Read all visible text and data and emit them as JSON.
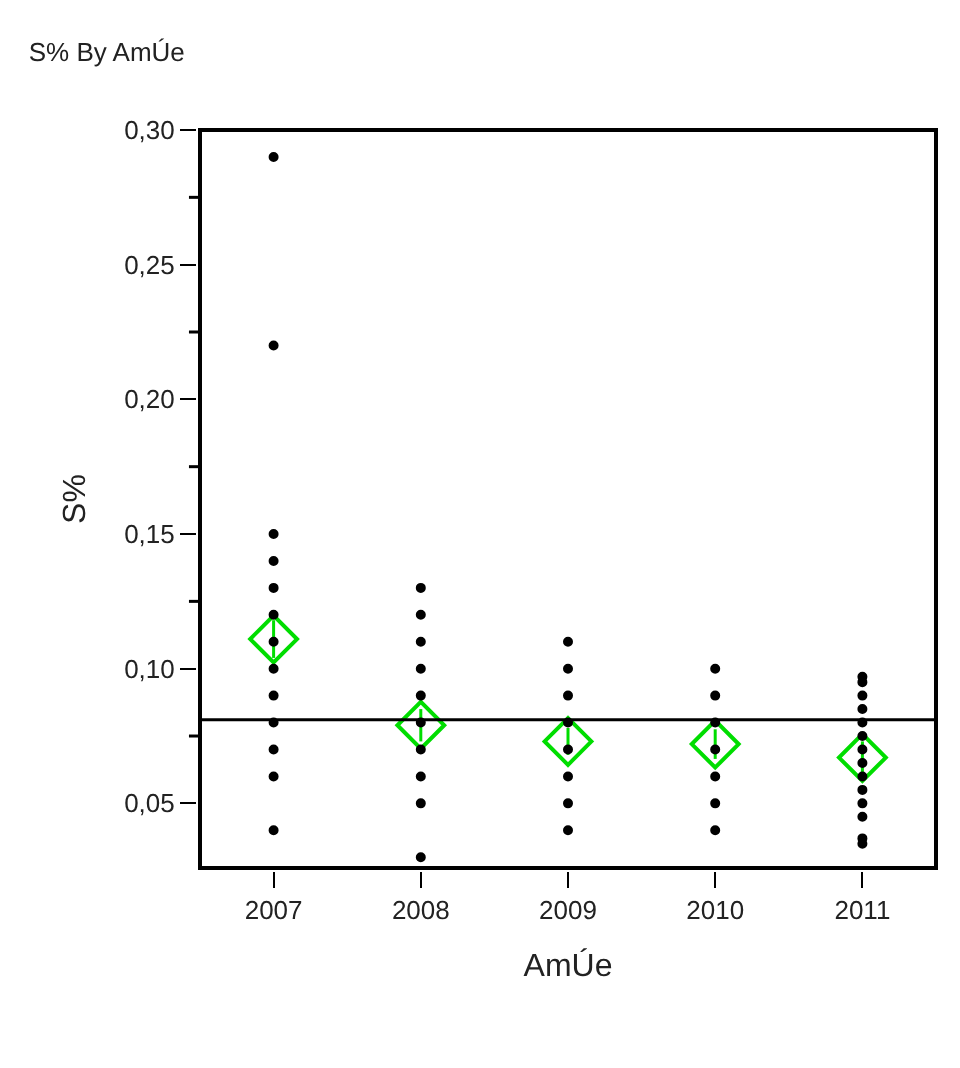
{
  "chart_data": {
    "type": "scatter",
    "title": "S% By AmÚe",
    "xlabel": "AmÚe",
    "ylabel": "S%",
    "series": [
      {
        "color": "#000000",
        "marker": "circle",
        "x": [
          2007,
          2007,
          2007,
          2007,
          2007,
          2007,
          2007,
          2007,
          2007,
          2007,
          2007,
          2007,
          2007,
          2008,
          2008,
          2008,
          2008,
          2008,
          2008,
          2008,
          2008,
          2008,
          2008,
          2009,
          2009,
          2009,
          2009,
          2009,
          2009,
          2009,
          2009,
          2010,
          2010,
          2010,
          2010,
          2010,
          2010,
          2010,
          2011,
          2011,
          2011,
          2011,
          2011,
          2011,
          2011,
          2011,
          2011,
          2011,
          2011,
          2011,
          2011,
          2011
        ],
        "values": [
          0.29,
          0.22,
          0.15,
          0.14,
          0.13,
          0.12,
          0.11,
          0.1,
          0.09,
          0.08,
          0.07,
          0.06,
          0.04,
          0.13,
          0.12,
          0.11,
          0.1,
          0.09,
          0.08,
          0.07,
          0.06,
          0.05,
          0.03,
          0.11,
          0.1,
          0.09,
          0.08,
          0.07,
          0.06,
          0.05,
          0.04,
          0.1,
          0.09,
          0.08,
          0.07,
          0.06,
          0.05,
          0.04,
          0.097,
          0.095,
          0.09,
          0.085,
          0.08,
          0.075,
          0.07,
          0.065,
          0.06,
          0.055,
          0.05,
          0.045,
          0.037,
          0.035
        ]
      },
      {
        "color": "#00dd00",
        "marker": "diamond",
        "x": [
          2007,
          2008,
          2009,
          2010,
          2011
        ],
        "values": [
          0.111,
          0.079,
          0.073,
          0.072,
          0.067
        ],
        "errors": [
          0.007,
          0.006,
          0.005,
          0.0055,
          0.006
        ]
      }
    ],
    "ref_lines": [
      {
        "axis": "y",
        "value": 0.081,
        "color": "#000000"
      }
    ],
    "xlim": [
      2006.5,
      2011.5
    ],
    "xticks": [
      2007,
      2008,
      2009,
      2010,
      2011
    ],
    "ylim": [
      0.026,
      0.3
    ],
    "yticks": [
      {
        "value": 0.05,
        "label": "0,05"
      },
      {
        "value": 0.1,
        "label": "0,10"
      },
      {
        "value": 0.15,
        "label": "0,15"
      },
      {
        "value": 0.2,
        "label": "0,20"
      },
      {
        "value": 0.25,
        "label": "0,25"
      },
      {
        "value": 0.3,
        "label": "0,30"
      }
    ]
  }
}
